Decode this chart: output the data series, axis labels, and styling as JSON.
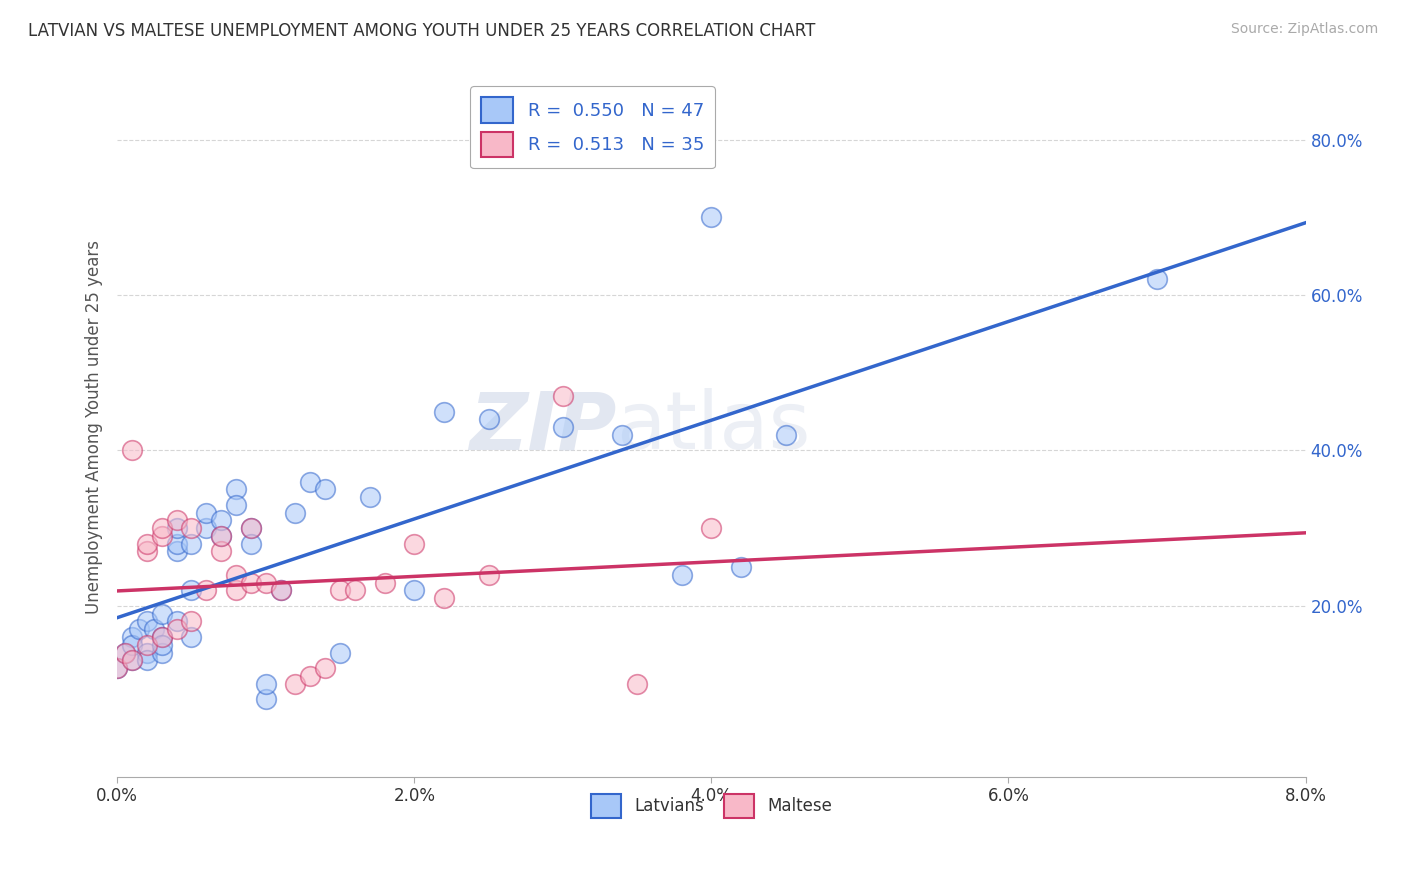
{
  "title": "LATVIAN VS MALTESE UNEMPLOYMENT AMONG YOUTH UNDER 25 YEARS CORRELATION CHART",
  "source": "Source: ZipAtlas.com",
  "ylabel": "Unemployment Among Youth under 25 years",
  "xlim": [
    0.0,
    0.08
  ],
  "ylim": [
    -0.02,
    0.88
  ],
  "xtick_labels": [
    "0.0%",
    "2.0%",
    "4.0%",
    "6.0%",
    "8.0%"
  ],
  "xtick_values": [
    0.0,
    0.02,
    0.04,
    0.06,
    0.08
  ],
  "ytick_labels": [
    "20.0%",
    "40.0%",
    "60.0%",
    "80.0%"
  ],
  "ytick_values": [
    0.2,
    0.4,
    0.6,
    0.8
  ],
  "latvian_color": "#a8c8f8",
  "maltese_color": "#f8b8c8",
  "latvian_line_color": "#3366cc",
  "maltese_line_color": "#cc3366",
  "legend_R_latvian": "R =  0.550",
  "legend_N_latvian": "N = 47",
  "legend_R_maltese": "R =  0.513",
  "legend_N_maltese": "N = 35",
  "latvians_label": "Latvians",
  "maltese_label": "Maltese",
  "watermark_zip": "ZIP",
  "watermark_atlas": "atlas",
  "latvian_x": [
    0.0,
    0.0005,
    0.001,
    0.001,
    0.001,
    0.0015,
    0.002,
    0.002,
    0.002,
    0.0025,
    0.003,
    0.003,
    0.003,
    0.003,
    0.004,
    0.004,
    0.004,
    0.004,
    0.005,
    0.005,
    0.005,
    0.006,
    0.006,
    0.007,
    0.007,
    0.008,
    0.008,
    0.009,
    0.009,
    0.01,
    0.01,
    0.011,
    0.012,
    0.013,
    0.014,
    0.015,
    0.017,
    0.02,
    0.022,
    0.025,
    0.03,
    0.034,
    0.038,
    0.04,
    0.042,
    0.045,
    0.07
  ],
  "latvian_y": [
    0.12,
    0.14,
    0.16,
    0.13,
    0.15,
    0.17,
    0.18,
    0.14,
    0.13,
    0.17,
    0.19,
    0.16,
    0.14,
    0.15,
    0.27,
    0.28,
    0.3,
    0.18,
    0.22,
    0.28,
    0.16,
    0.3,
    0.32,
    0.29,
    0.31,
    0.35,
    0.33,
    0.3,
    0.28,
    0.08,
    0.1,
    0.22,
    0.32,
    0.36,
    0.35,
    0.14,
    0.34,
    0.22,
    0.45,
    0.44,
    0.43,
    0.42,
    0.24,
    0.7,
    0.25,
    0.42,
    0.62
  ],
  "maltese_x": [
    0.0,
    0.0005,
    0.001,
    0.001,
    0.002,
    0.002,
    0.002,
    0.003,
    0.003,
    0.003,
    0.004,
    0.004,
    0.005,
    0.005,
    0.006,
    0.007,
    0.007,
    0.008,
    0.008,
    0.009,
    0.009,
    0.01,
    0.011,
    0.012,
    0.013,
    0.014,
    0.015,
    0.016,
    0.018,
    0.02,
    0.022,
    0.025,
    0.03,
    0.035,
    0.04
  ],
  "maltese_y": [
    0.12,
    0.14,
    0.13,
    0.4,
    0.15,
    0.27,
    0.28,
    0.16,
    0.29,
    0.3,
    0.17,
    0.31,
    0.18,
    0.3,
    0.22,
    0.27,
    0.29,
    0.22,
    0.24,
    0.23,
    0.3,
    0.23,
    0.22,
    0.1,
    0.11,
    0.12,
    0.22,
    0.22,
    0.23,
    0.28,
    0.21,
    0.24,
    0.47,
    0.1,
    0.3
  ],
  "background_color": "#ffffff",
  "grid_color": "#cccccc",
  "ytick_color": "#3366cc",
  "xtick_color": "#333333"
}
